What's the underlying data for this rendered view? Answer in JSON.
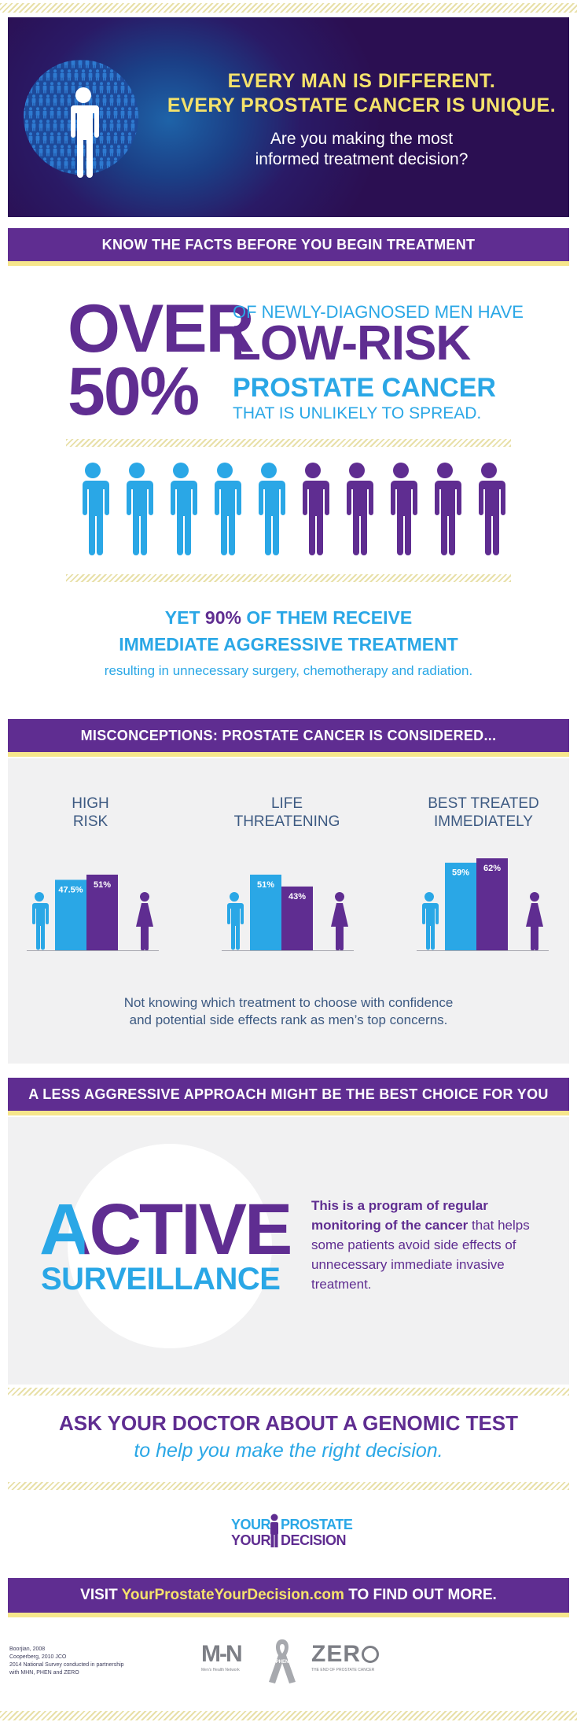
{
  "hero": {
    "title_line1": "EVERY MAN IS DIFFERENT.",
    "title_line2": "EVERY PROSTATE CANCER IS UNIQUE.",
    "subtitle_line1": "Are you making the most",
    "subtitle_line2": "informed treatment decision?"
  },
  "facts_banner": "KNOW THE FACTS BEFORE YOU BEGIN TREATMENT",
  "stat": {
    "over": "OVER",
    "pct": "50%",
    "line1": "OF NEWLY-DIAGNOSED MEN HAVE",
    "line2": "LOW-RISK",
    "line3": "PROSTATE CANCER",
    "line4": "THAT IS UNLIKELY TO SPREAD.",
    "figures_blue": 5,
    "figures_purple": 5
  },
  "yet": {
    "prefix": "YET ",
    "pct": "90%",
    "suffix": " OF THEM RECEIVE",
    "line2": "IMMEDIATE AGGRESSIVE TREATMENT",
    "line3": "resulting in unnecessary surgery, chemotherapy and radiation."
  },
  "misconceptions": {
    "banner": "MISCONCEPTIONS: PROSTATE CANCER IS CONSIDERED...",
    "groups": [
      {
        "title_line1": "HIGH",
        "title_line2": "RISK",
        "men_label": "47.5%",
        "men_value": 47.5,
        "women_label": "51%",
        "women_value": 51
      },
      {
        "title_line1": "LIFE",
        "title_line2": "THREATENING",
        "men_label": "51%",
        "men_value": 51,
        "women_label": "43%",
        "women_value": 43
      },
      {
        "title_line1": "BEST TREATED",
        "title_line2": "IMMEDIATELY",
        "men_label": "59%",
        "men_value": 59,
        "women_label": "62%",
        "women_value": 62
      }
    ],
    "note_line1": "Not knowing which treatment to choose with confidence",
    "note_line2": "and potential side effects rank as men’s top concerns."
  },
  "approach": {
    "banner": "A LESS AGGRESSIVE APPROACH MIGHT BE THE BEST CHOICE FOR YOU",
    "word1": "ACTIVE",
    "word2": "SURVEILLANCE",
    "desc_bold": "This is a program of regular monitoring of the cancer",
    "desc_rest": " that helps some patients avoid side effects of unnecessary immediate invasive treatment."
  },
  "ask": {
    "line1": "ASK YOUR DOCTOR ABOUT A GENOMIC TEST",
    "line2": "to help you make the right decision."
  },
  "logo": {
    "your1": "YOUR",
    "prostate": "PROSTATE",
    "your2": "YOUR",
    "decision": "DECISION"
  },
  "visit": {
    "prefix": "VISIT ",
    "url": "YourProstateYourDecision.com",
    "suffix": " TO FIND OUT MORE."
  },
  "references": [
    "Boorjian, 2008",
    "Cooperberg, 2010 JCO",
    "2014 National Survey conducted in partnership",
    "with MHN, PHEN and ZERO"
  ],
  "partners": {
    "mhn": "M-N",
    "mhn_sub": "Men's Health Network",
    "phen": "PHEN",
    "zero": "ZER",
    "zero_sub": "THE END OF PROSTATE CANCER"
  },
  "colors": {
    "purple": "#5f2d91",
    "blue": "#2aa7e6",
    "yellow": "#f5e26b",
    "navy_text": "#3d5a82"
  }
}
